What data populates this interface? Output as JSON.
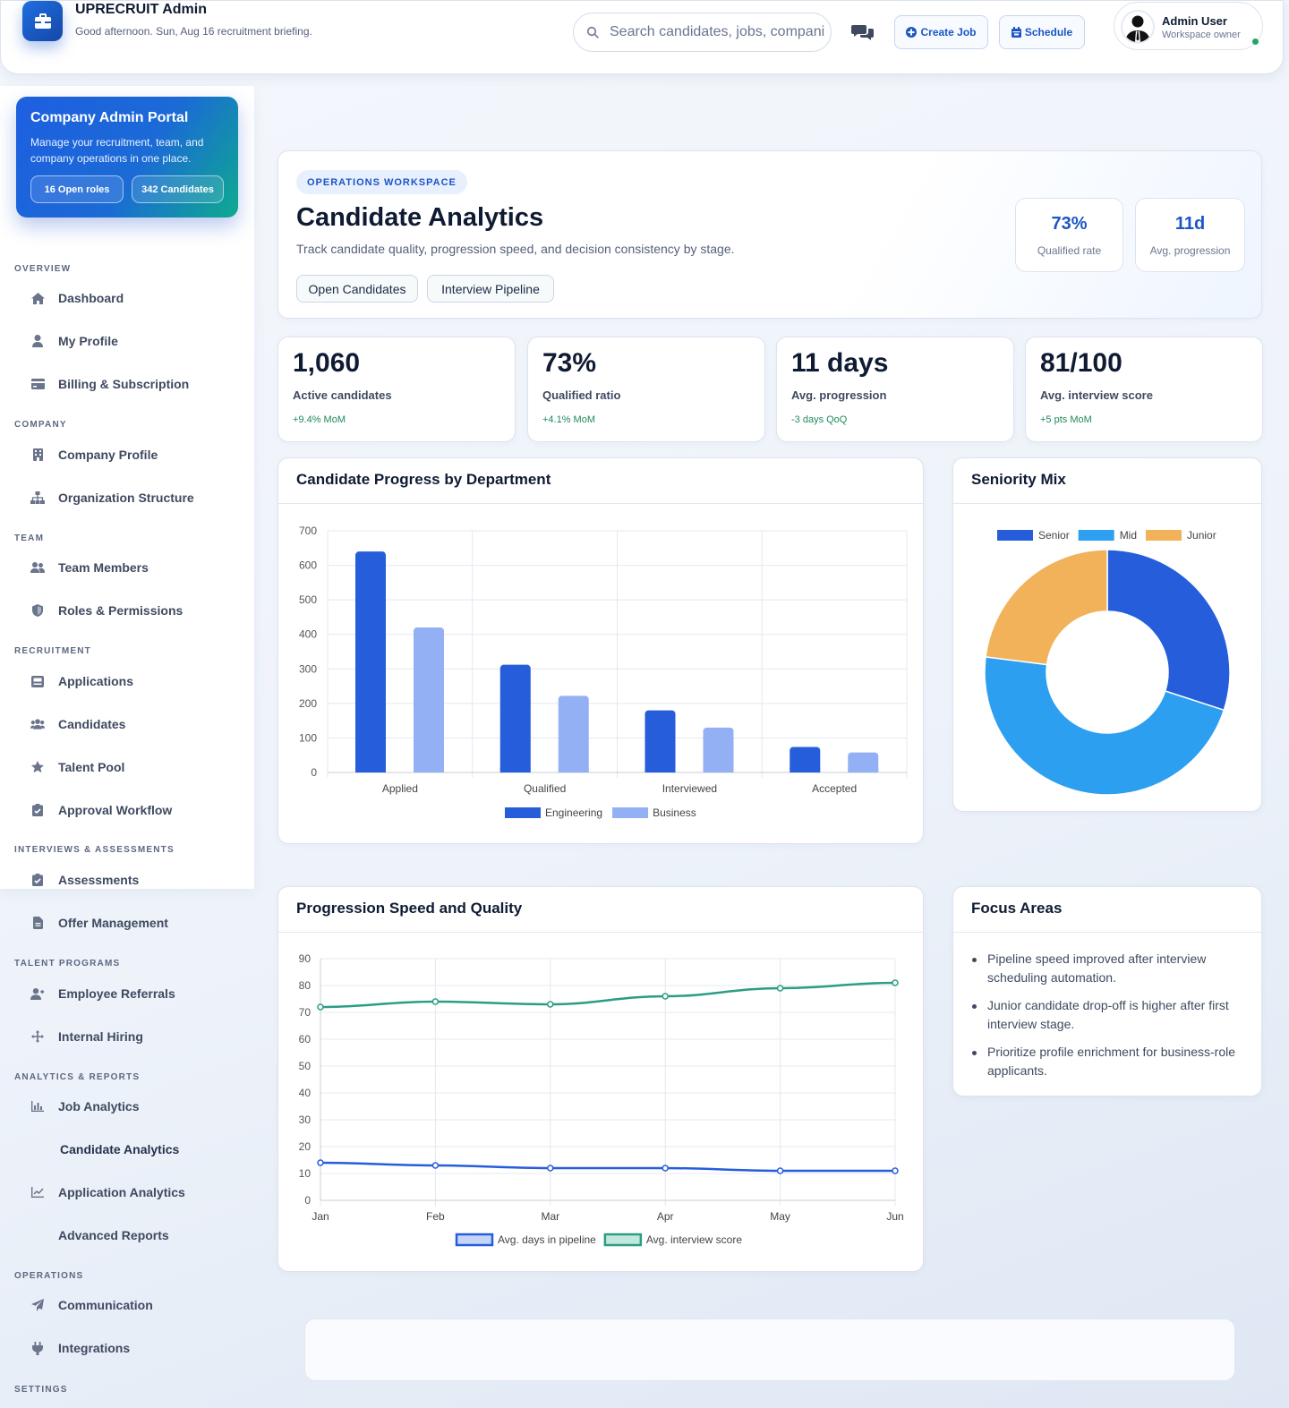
{
  "header": {
    "brand": "UPRECRUIT Admin",
    "greeting": "Good afternoon. Sun, Aug 16 recruitment briefing.",
    "search_placeholder": "Search candidates, jobs, companies",
    "create_job": "Create Job",
    "schedule": "Schedule",
    "user_name": "Admin User",
    "user_role": "Workspace owner"
  },
  "portal": {
    "title": "Company Admin Portal",
    "description": "Manage your recruitment, team, and company operations in one place.",
    "open_roles": "16 Open roles",
    "candidates": "342 Candidates"
  },
  "sidebar": {
    "overview": "OVERVIEW",
    "dashboard": "Dashboard",
    "my_profile": "My Profile",
    "billing": "Billing & Subscription",
    "company": "COMPANY",
    "company_profile": "Company Profile",
    "org_structure": "Organization Structure",
    "team": "TEAM",
    "team_members": "Team Members",
    "roles": "Roles & Permissions",
    "recruitment": "RECRUITMENT",
    "applications": "Applications",
    "candidates": "Candidates",
    "talent_pool": "Talent Pool",
    "approval": "Approval Workflow",
    "interviews": "INTERVIEWS & ASSESSMENTS",
    "assessments": "Assessments",
    "offer": "Offer Management",
    "talent_programs": "TALENT PROGRAMS",
    "referrals": "Employee Referrals",
    "internal_hiring": "Internal Hiring",
    "analytics": "ANALYTICS & REPORTS",
    "job_analytics": "Job Analytics",
    "candidate_analytics": "Candidate Analytics",
    "application_analytics": "Application Analytics",
    "advanced_reports": "Advanced Reports",
    "operations": "OPERATIONS",
    "communication": "Communication",
    "integrations": "Integrations",
    "settings": "SETTINGS"
  },
  "hero": {
    "chip": "OPERATIONS WORKSPACE",
    "title": "Candidate Analytics",
    "subtitle": "Track candidate quality, progression speed, and decision consistency by stage.",
    "btn_open": "Open Candidates",
    "btn_pipeline": "Interview Pipeline",
    "stat1_value": "73%",
    "stat1_label": "Qualified rate",
    "stat2_value": "11d",
    "stat2_label": "Avg. progression"
  },
  "kpis": [
    {
      "value": "1,060",
      "label": "Active candidates",
      "change": "+9.4% MoM"
    },
    {
      "value": "73%",
      "label": "Qualified ratio",
      "change": "+4.1% MoM"
    },
    {
      "value": "11 days",
      "label": "Avg. progression",
      "change": "-3 days QoQ"
    },
    {
      "value": "81/100",
      "label": "Avg. interview score",
      "change": "+5 pts MoM"
    }
  ],
  "panels": {
    "progress_title": "Candidate Progress by Department",
    "seniority_title": "Seniority Mix",
    "speed_title": "Progression Speed and Quality",
    "focus_title": "Focus Areas"
  },
  "focus": [
    "Pipeline speed improved after interview scheduling automation.",
    "Junior candidate drop-off is higher after first interview stage.",
    "Prioritize profile enrichment for business-role applicants."
  ],
  "colors": {
    "primary": "#255ddb",
    "light_blue": "#93b0f5",
    "sky": "#2d9ff0",
    "orange": "#f1b25a",
    "teal": "#2a9d82"
  },
  "chart_data": [
    {
      "type": "bar",
      "categories": [
        "Applied",
        "Qualified",
        "Interviewed",
        "Accepted"
      ],
      "series": [
        {
          "name": "Engineering",
          "values": [
            640,
            312,
            180,
            74
          ]
        },
        {
          "name": "Business",
          "values": [
            420,
            222,
            130,
            58
          ]
        }
      ],
      "ylim": [
        0,
        700
      ],
      "yticks": [
        0,
        100,
        200,
        300,
        400,
        500,
        600,
        700
      ],
      "legend": "bottom",
      "grid": true
    },
    {
      "type": "pie",
      "labels": [
        "Senior",
        "Mid",
        "Junior"
      ],
      "values": [
        30,
        47,
        23
      ],
      "legend": "top"
    },
    {
      "type": "line",
      "x": [
        "Jan",
        "Feb",
        "Mar",
        "Apr",
        "May",
        "Jun"
      ],
      "series": [
        {
          "name": "Avg. days in pipeline",
          "values": [
            14,
            13,
            12,
            12,
            11,
            11
          ]
        },
        {
          "name": "Avg. interview score",
          "values": [
            72,
            74,
            73,
            76,
            79,
            81
          ]
        }
      ],
      "ylim": [
        0,
        90
      ],
      "yticks": [
        0,
        10,
        20,
        30,
        40,
        50,
        60,
        70,
        80,
        90
      ],
      "legend": "bottom",
      "grid": true
    }
  ]
}
